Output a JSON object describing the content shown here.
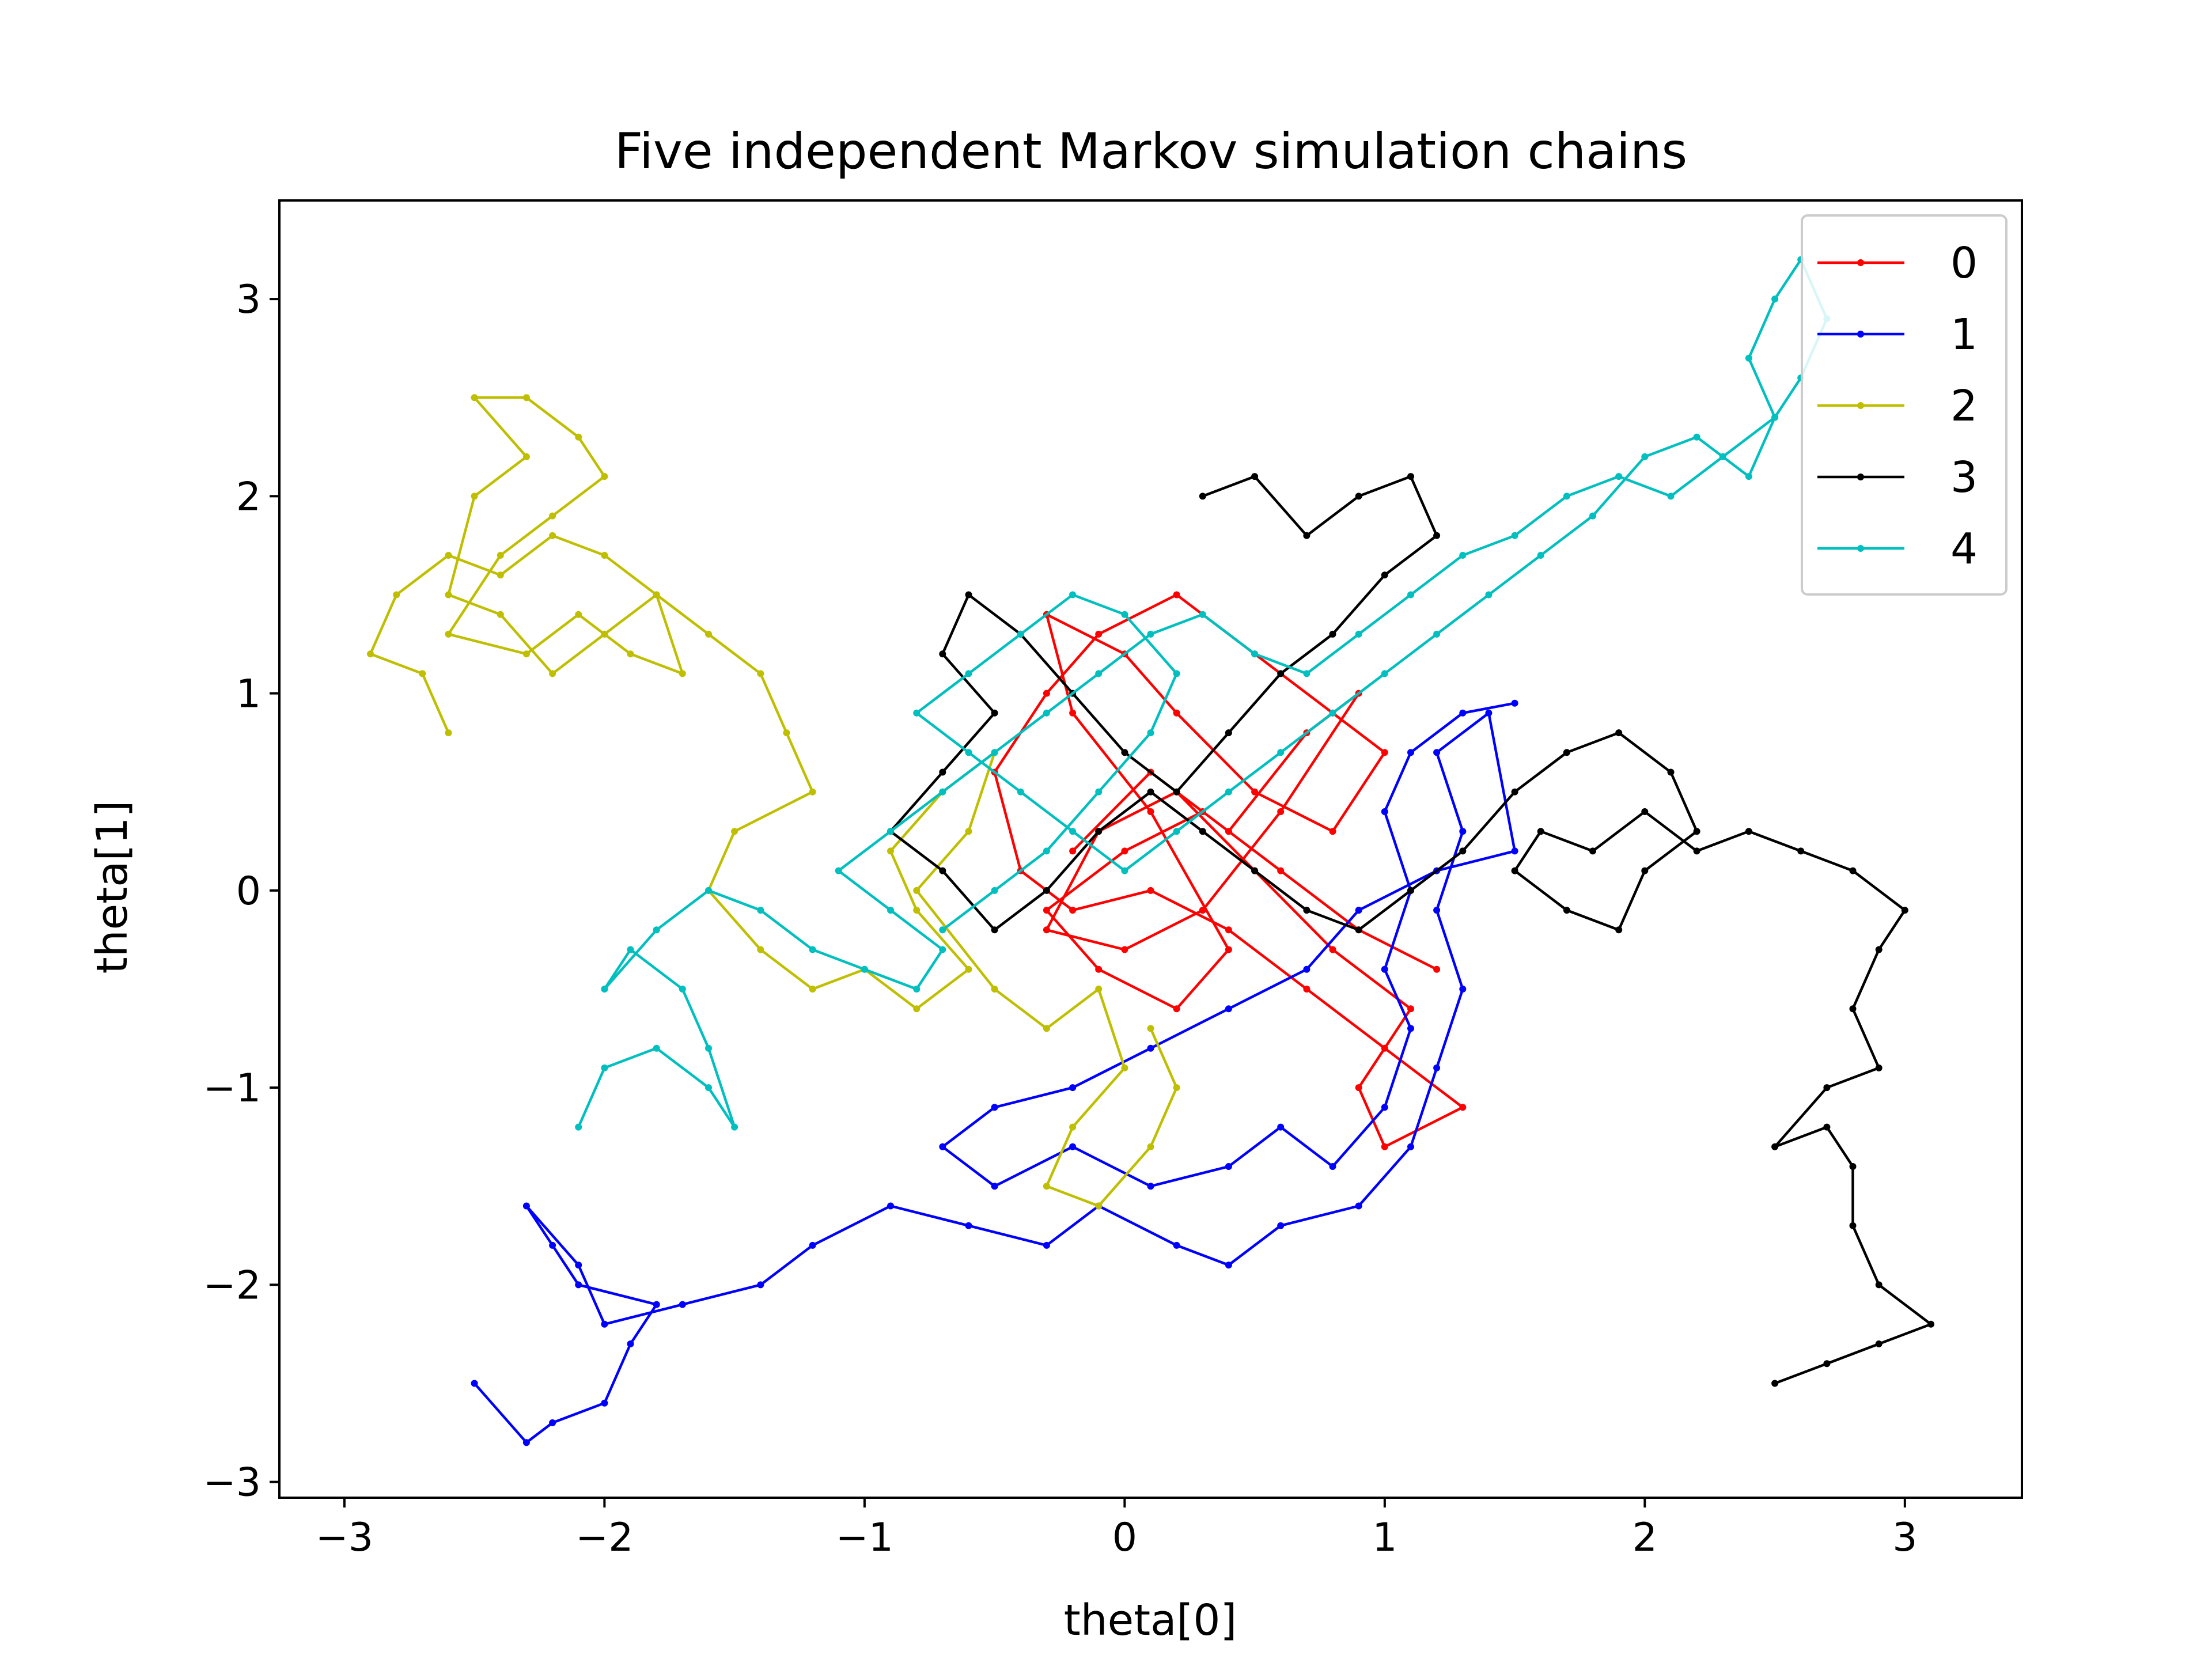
{
  "chart_data": {
    "type": "line",
    "title": "Five independent Markov simulation chains",
    "xlabel": "theta[0]",
    "ylabel": "theta[1]",
    "xlim": [
      -3.25,
      3.45
    ],
    "ylim": [
      -3.08,
      3.5
    ],
    "xticks": [
      -3,
      -2,
      -1,
      0,
      1,
      2,
      3
    ],
    "yticks": [
      -3,
      -2,
      -1,
      0,
      1,
      2,
      3
    ],
    "xtick_labels": [
      "−3",
      "−2",
      "−1",
      "0",
      "1",
      "2",
      "3"
    ],
    "ytick_labels": [
      "−3",
      "−2",
      "−1",
      "0",
      "1",
      "2",
      "3"
    ],
    "grid": false,
    "legend": "top-right",
    "series": [
      {
        "name": "0",
        "color": "#ff0000",
        "points": [
          [
            -0.2,
            0.2
          ],
          [
            0.1,
            0.6
          ],
          [
            0.4,
            0.3
          ],
          [
            0.7,
            0.8
          ],
          [
            0.9,
            1.0
          ],
          [
            0.6,
            0.4
          ],
          [
            0.3,
            -0.1
          ],
          [
            0.0,
            -0.3
          ],
          [
            -0.3,
            -0.2
          ],
          [
            -0.1,
            0.3
          ],
          [
            0.2,
            0.5
          ],
          [
            0.5,
            0.1
          ],
          [
            0.8,
            -0.3
          ],
          [
            1.1,
            -0.6
          ],
          [
            0.9,
            -1.0
          ],
          [
            1.0,
            -1.3
          ],
          [
            1.3,
            -1.1
          ],
          [
            1.0,
            -0.8
          ],
          [
            0.7,
            -0.5
          ],
          [
            0.4,
            -0.2
          ],
          [
            0.1,
            0.0
          ],
          [
            -0.2,
            -0.1
          ],
          [
            -0.4,
            0.1
          ],
          [
            -0.5,
            0.6
          ],
          [
            -0.3,
            1.0
          ],
          [
            -0.1,
            1.3
          ],
          [
            0.2,
            1.5
          ],
          [
            0.5,
            1.2
          ],
          [
            0.8,
            0.9
          ],
          [
            1.0,
            0.7
          ],
          [
            0.8,
            0.3
          ],
          [
            0.5,
            0.5
          ],
          [
            0.2,
            0.9
          ],
          [
            0.0,
            1.2
          ],
          [
            -0.3,
            1.4
          ],
          [
            -0.2,
            0.9
          ],
          [
            0.1,
            0.4
          ],
          [
            0.4,
            -0.3
          ],
          [
            0.2,
            -0.6
          ],
          [
            -0.1,
            -0.4
          ],
          [
            -0.3,
            -0.1
          ],
          [
            0.0,
            0.2
          ],
          [
            0.3,
            0.4
          ],
          [
            0.6,
            0.1
          ],
          [
            0.9,
            -0.2
          ],
          [
            1.2,
            -0.4
          ]
        ]
      },
      {
        "name": "1",
        "color": "#0000ff",
        "points": [
          [
            -2.5,
            -2.5
          ],
          [
            -2.3,
            -2.8
          ],
          [
            -2.2,
            -2.7
          ],
          [
            -2.0,
            -2.6
          ],
          [
            -1.9,
            -2.3
          ],
          [
            -1.8,
            -2.1
          ],
          [
            -2.1,
            -2.0
          ],
          [
            -2.2,
            -1.8
          ],
          [
            -2.3,
            -1.6
          ],
          [
            -2.1,
            -1.9
          ],
          [
            -2.0,
            -2.2
          ],
          [
            -1.7,
            -2.1
          ],
          [
            -1.4,
            -2.0
          ],
          [
            -1.2,
            -1.8
          ],
          [
            -0.9,
            -1.6
          ],
          [
            -0.6,
            -1.7
          ],
          [
            -0.3,
            -1.8
          ],
          [
            -0.1,
            -1.6
          ],
          [
            0.2,
            -1.8
          ],
          [
            0.4,
            -1.9
          ],
          [
            0.6,
            -1.7
          ],
          [
            0.9,
            -1.6
          ],
          [
            1.1,
            -1.3
          ],
          [
            1.2,
            -0.9
          ],
          [
            1.3,
            -0.5
          ],
          [
            1.2,
            -0.1
          ],
          [
            1.3,
            0.3
          ],
          [
            1.2,
            0.7
          ],
          [
            1.4,
            0.9
          ],
          [
            1.5,
            0.2
          ],
          [
            1.2,
            0.1
          ],
          [
            0.9,
            -0.1
          ],
          [
            0.7,
            -0.4
          ],
          [
            0.4,
            -0.6
          ],
          [
            0.1,
            -0.8
          ],
          [
            -0.2,
            -1.0
          ],
          [
            -0.5,
            -1.1
          ],
          [
            -0.7,
            -1.3
          ],
          [
            -0.5,
            -1.5
          ],
          [
            -0.2,
            -1.3
          ],
          [
            0.1,
            -1.5
          ],
          [
            0.4,
            -1.4
          ],
          [
            0.6,
            -1.2
          ],
          [
            0.8,
            -1.4
          ],
          [
            1.0,
            -1.1
          ],
          [
            1.1,
            -0.7
          ],
          [
            1.0,
            -0.4
          ],
          [
            1.1,
            0.0
          ],
          [
            1.0,
            0.4
          ],
          [
            1.1,
            0.7
          ],
          [
            1.3,
            0.9
          ],
          [
            1.5,
            0.95
          ]
        ]
      },
      {
        "name": "2",
        "color": "#bfbf00",
        "points": [
          [
            -2.6,
            0.8
          ],
          [
            -2.7,
            1.1
          ],
          [
            -2.9,
            1.2
          ],
          [
            -2.8,
            1.5
          ],
          [
            -2.6,
            1.7
          ],
          [
            -2.4,
            1.6
          ],
          [
            -2.2,
            1.8
          ],
          [
            -2.0,
            1.7
          ],
          [
            -1.8,
            1.5
          ],
          [
            -2.0,
            1.3
          ],
          [
            -2.2,
            1.1
          ],
          [
            -2.4,
            1.4
          ],
          [
            -2.6,
            1.5
          ],
          [
            -2.5,
            2.0
          ],
          [
            -2.3,
            2.2
          ],
          [
            -2.5,
            2.5
          ],
          [
            -2.3,
            2.5
          ],
          [
            -2.1,
            2.3
          ],
          [
            -2.0,
            2.1
          ],
          [
            -2.2,
            1.9
          ],
          [
            -2.4,
            1.7
          ],
          [
            -2.6,
            1.3
          ],
          [
            -2.3,
            1.2
          ],
          [
            -2.1,
            1.4
          ],
          [
            -1.9,
            1.2
          ],
          [
            -1.7,
            1.1
          ],
          [
            -1.8,
            1.5
          ],
          [
            -1.6,
            1.3
          ],
          [
            -1.4,
            1.1
          ],
          [
            -1.3,
            0.8
          ],
          [
            -1.2,
            0.5
          ],
          [
            -1.5,
            0.3
          ],
          [
            -1.6,
            0.0
          ],
          [
            -1.4,
            -0.3
          ],
          [
            -1.2,
            -0.5
          ],
          [
            -1.0,
            -0.4
          ],
          [
            -0.8,
            -0.6
          ],
          [
            -0.6,
            -0.4
          ],
          [
            -0.8,
            -0.1
          ],
          [
            -0.9,
            0.2
          ],
          [
            -0.7,
            0.5
          ],
          [
            -0.5,
            0.7
          ],
          [
            -0.6,
            0.3
          ],
          [
            -0.8,
            0.0
          ],
          [
            -0.5,
            -0.5
          ],
          [
            -0.3,
            -0.7
          ],
          [
            -0.1,
            -0.5
          ],
          [
            0.0,
            -0.9
          ],
          [
            -0.2,
            -1.2
          ],
          [
            -0.3,
            -1.5
          ],
          [
            -0.1,
            -1.6
          ],
          [
            0.1,
            -1.3
          ],
          [
            0.2,
            -1.0
          ],
          [
            0.1,
            -0.7
          ]
        ]
      },
      {
        "name": "3",
        "color": "#000000",
        "points": [
          [
            2.5,
            -2.5
          ],
          [
            2.7,
            -2.4
          ],
          [
            2.9,
            -2.3
          ],
          [
            3.1,
            -2.2
          ],
          [
            2.9,
            -2.0
          ],
          [
            2.8,
            -1.7
          ],
          [
            2.8,
            -1.4
          ],
          [
            2.7,
            -1.2
          ],
          [
            2.5,
            -1.3
          ],
          [
            2.7,
            -1.0
          ],
          [
            2.9,
            -0.9
          ],
          [
            2.8,
            -0.6
          ],
          [
            2.9,
            -0.3
          ],
          [
            3.0,
            -0.1
          ],
          [
            2.8,
            0.1
          ],
          [
            2.6,
            0.2
          ],
          [
            2.4,
            0.3
          ],
          [
            2.2,
            0.2
          ],
          [
            2.0,
            0.4
          ],
          [
            1.8,
            0.2
          ],
          [
            1.6,
            0.3
          ],
          [
            1.5,
            0.1
          ],
          [
            1.7,
            -0.1
          ],
          [
            1.9,
            -0.2
          ],
          [
            2.0,
            0.1
          ],
          [
            2.2,
            0.3
          ],
          [
            2.1,
            0.6
          ],
          [
            1.9,
            0.8
          ],
          [
            1.7,
            0.7
          ],
          [
            1.5,
            0.5
          ],
          [
            1.3,
            0.2
          ],
          [
            1.1,
            0.0
          ],
          [
            0.9,
            -0.2
          ],
          [
            0.7,
            -0.1
          ],
          [
            0.5,
            0.1
          ],
          [
            0.3,
            0.3
          ],
          [
            0.1,
            0.5
          ],
          [
            -0.1,
            0.3
          ],
          [
            -0.3,
            0.0
          ],
          [
            -0.5,
            -0.2
          ],
          [
            -0.7,
            0.1
          ],
          [
            -0.9,
            0.3
          ],
          [
            -0.7,
            0.6
          ],
          [
            -0.5,
            0.9
          ],
          [
            -0.7,
            1.2
          ],
          [
            -0.6,
            1.5
          ],
          [
            -0.4,
            1.3
          ],
          [
            -0.2,
            1.0
          ],
          [
            0.0,
            0.7
          ],
          [
            0.2,
            0.5
          ],
          [
            0.4,
            0.8
          ],
          [
            0.6,
            1.1
          ],
          [
            0.8,
            1.3
          ],
          [
            1.0,
            1.6
          ],
          [
            1.2,
            1.8
          ],
          [
            1.1,
            2.1
          ],
          [
            0.9,
            2.0
          ],
          [
            0.7,
            1.8
          ],
          [
            0.5,
            2.1
          ],
          [
            0.3,
            2.0
          ]
        ]
      },
      {
        "name": "4",
        "color": "#00bfbf",
        "points": [
          [
            -2.1,
            -1.2
          ],
          [
            -2.0,
            -0.9
          ],
          [
            -1.8,
            -0.8
          ],
          [
            -1.6,
            -1.0
          ],
          [
            -1.5,
            -1.2
          ],
          [
            -1.6,
            -0.8
          ],
          [
            -1.7,
            -0.5
          ],
          [
            -1.9,
            -0.3
          ],
          [
            -2.0,
            -0.5
          ],
          [
            -1.8,
            -0.2
          ],
          [
            -1.6,
            0.0
          ],
          [
            -1.4,
            -0.1
          ],
          [
            -1.2,
            -0.3
          ],
          [
            -1.0,
            -0.4
          ],
          [
            -0.8,
            -0.5
          ],
          [
            -0.7,
            -0.3
          ],
          [
            -0.9,
            -0.1
          ],
          [
            -1.1,
            0.1
          ],
          [
            -0.9,
            0.3
          ],
          [
            -0.7,
            0.5
          ],
          [
            -0.5,
            0.7
          ],
          [
            -0.3,
            0.9
          ],
          [
            -0.1,
            1.1
          ],
          [
            0.1,
            1.3
          ],
          [
            0.3,
            1.4
          ],
          [
            0.5,
            1.2
          ],
          [
            0.7,
            1.1
          ],
          [
            0.9,
            1.3
          ],
          [
            1.1,
            1.5
          ],
          [
            1.3,
            1.7
          ],
          [
            1.5,
            1.8
          ],
          [
            1.7,
            2.0
          ],
          [
            1.9,
            2.1
          ],
          [
            2.1,
            2.0
          ],
          [
            2.3,
            2.2
          ],
          [
            2.5,
            2.4
          ],
          [
            2.4,
            2.7
          ],
          [
            2.5,
            3.0
          ],
          [
            2.6,
            3.2
          ],
          [
            2.7,
            2.9
          ],
          [
            2.6,
            2.6
          ],
          [
            2.5,
            2.4
          ],
          [
            2.4,
            2.1
          ],
          [
            2.2,
            2.3
          ],
          [
            2.0,
            2.2
          ],
          [
            1.8,
            1.9
          ],
          [
            1.6,
            1.7
          ],
          [
            1.4,
            1.5
          ],
          [
            1.2,
            1.3
          ],
          [
            1.0,
            1.1
          ],
          [
            0.8,
            0.9
          ],
          [
            0.6,
            0.7
          ],
          [
            0.4,
            0.5
          ],
          [
            0.2,
            0.3
          ],
          [
            0.0,
            0.1
          ],
          [
            -0.2,
            0.3
          ],
          [
            -0.4,
            0.5
          ],
          [
            -0.6,
            0.7
          ],
          [
            -0.8,
            0.9
          ],
          [
            -0.6,
            1.1
          ],
          [
            -0.4,
            1.3
          ],
          [
            -0.2,
            1.5
          ],
          [
            0.0,
            1.4
          ],
          [
            0.2,
            1.1
          ],
          [
            0.1,
            0.8
          ],
          [
            -0.1,
            0.5
          ],
          [
            -0.3,
            0.2
          ],
          [
            -0.5,
            0.0
          ],
          [
            -0.7,
            -0.2
          ]
        ]
      }
    ]
  }
}
